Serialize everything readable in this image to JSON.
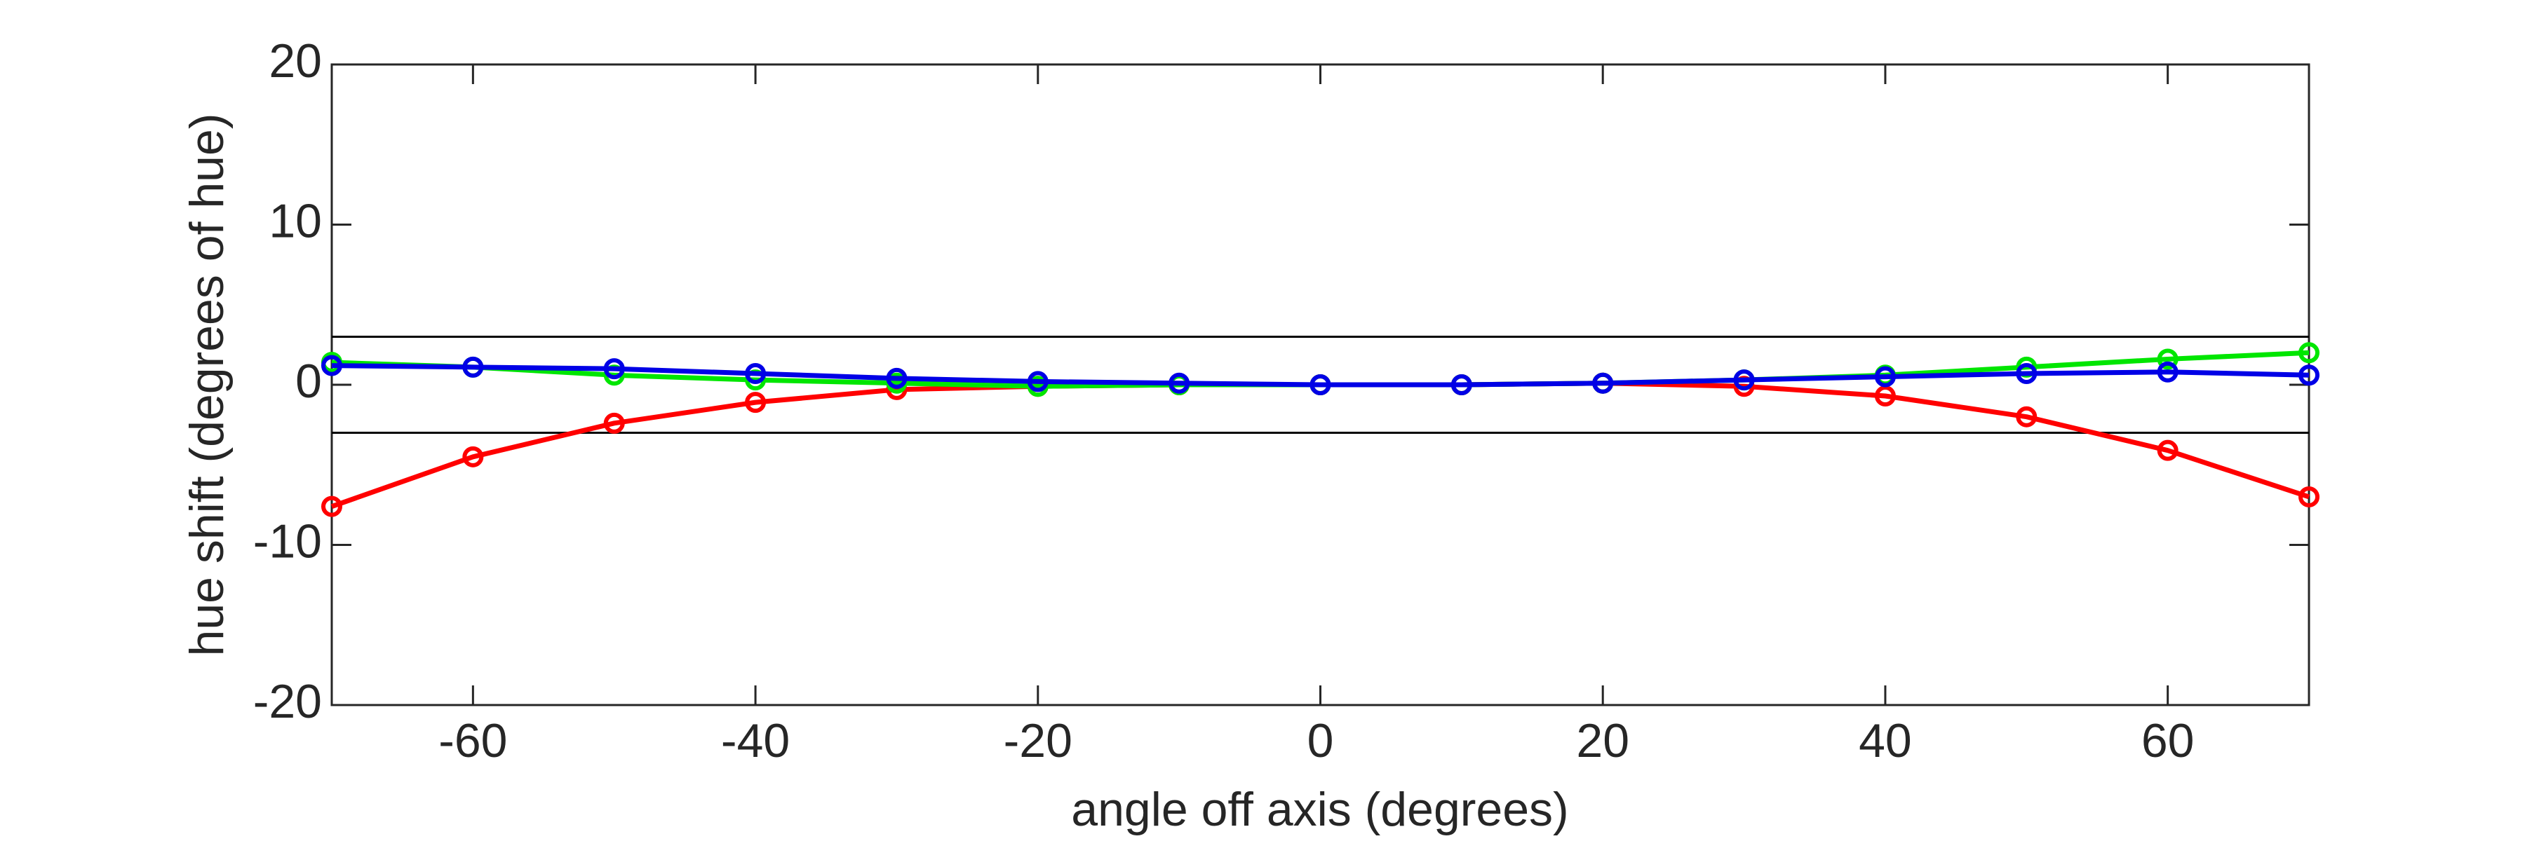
{
  "chart_data": {
    "type": "line",
    "x_label": "angle off axis (degrees)",
    "y_label": "hue shift (degrees of hue)",
    "x": [
      -70,
      -60,
      -50,
      -40,
      -30,
      -20,
      -10,
      0,
      10,
      20,
      30,
      40,
      50,
      60,
      70
    ],
    "series": [
      {
        "color": "#ff0000",
        "values": [
          -7.6,
          -4.5,
          -2.4,
          -1.1,
          -0.3,
          -0.1,
          0,
          0,
          0,
          0.1,
          -0.1,
          -0.7,
          -2.0,
          -4.1,
          -7.0
        ]
      },
      {
        "color": "#00e600",
        "values": [
          1.4,
          1.1,
          0.6,
          0.3,
          0.1,
          -0.1,
          0,
          0,
          0,
          0.1,
          0.3,
          0.6,
          1.1,
          1.6,
          2.0
        ]
      },
      {
        "color": "#0000e6",
        "values": [
          1.2,
          1.1,
          1.0,
          0.7,
          0.4,
          0.2,
          0.1,
          0,
          0,
          0.1,
          0.3,
          0.5,
          0.7,
          0.8,
          0.6
        ]
      }
    ],
    "reference_lines": [
      3,
      -3
    ],
    "xlim": [
      -70,
      70
    ],
    "xticks": [
      -60,
      -40,
      -20,
      0,
      20,
      40,
      60
    ],
    "ylim": [
      -20,
      20
    ],
    "yticks": [
      -20,
      -10,
      0,
      10,
      20
    ],
    "grid": false
  }
}
